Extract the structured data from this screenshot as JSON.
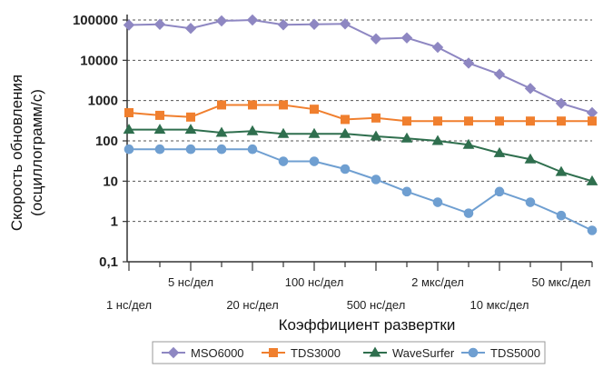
{
  "chart_data": {
    "type": "line",
    "xlabel": "Коэффициент развертки",
    "ylabel_line1": "Скорость обновления",
    "ylabel_line2": "(осциллограмм/с)",
    "y_scale": "log",
    "ylim": [
      0.1,
      100000
    ],
    "y_ticks": [
      "0,1",
      "1",
      "10",
      "100",
      "1000",
      "10000",
      "100000"
    ],
    "grid": "horizontal dashed",
    "legend_position": "bottom",
    "x_tick_labels_upper": [
      "5 нс/дел",
      "100 нс/дел",
      "2 мкс/дел",
      "50 мкс/дел"
    ],
    "x_tick_labels_lower": [
      "1 нс/дел",
      "20 нс/дел",
      "500 нс/дел",
      "10 мкс/дел"
    ],
    "x_points": 16,
    "series": [
      {
        "name": "MSO6000",
        "color": "#8e87c2",
        "marker": "diamond",
        "values": [
          75000,
          78000,
          62000,
          95000,
          100000,
          76000,
          78000,
          80000,
          34000,
          36000,
          21000,
          8500,
          4500,
          2000,
          850,
          500
        ]
      },
      {
        "name": "TDS3000",
        "color": "#f07f2e",
        "marker": "square",
        "values": [
          500,
          430,
          390,
          780,
          780,
          780,
          610,
          340,
          370,
          310,
          310,
          310,
          310,
          310,
          310,
          310
        ]
      },
      {
        "name": "WaveSurfer",
        "color": "#2f6f4e",
        "marker": "triangle",
        "values": [
          190,
          190,
          190,
          160,
          175,
          150,
          150,
          150,
          130,
          115,
          100,
          80,
          50,
          35,
          17,
          10
        ]
      },
      {
        "name": "TDS5000",
        "color": "#6f9fd1",
        "marker": "circle",
        "values": [
          62,
          62,
          62,
          62,
          62,
          31,
          31,
          20,
          11,
          5.5,
          3,
          1.6,
          5.5,
          3,
          1.4,
          0.6
        ]
      }
    ]
  }
}
